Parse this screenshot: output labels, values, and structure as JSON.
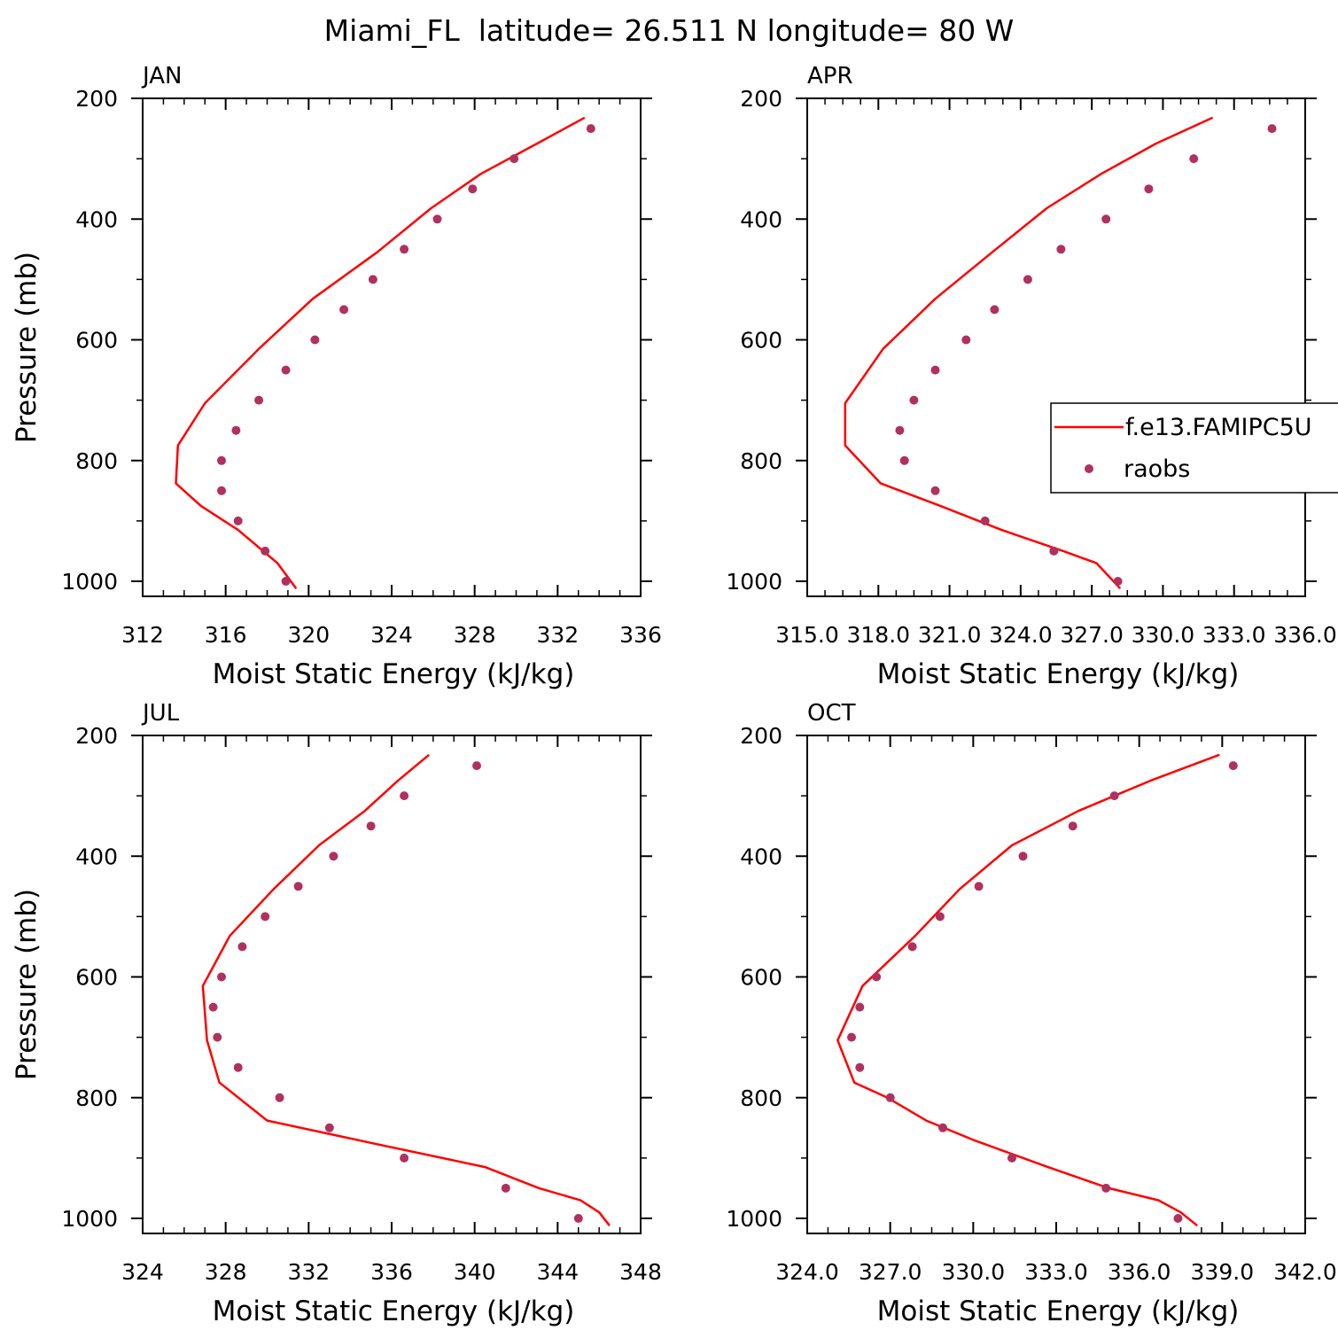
{
  "figure": {
    "title": "Miami_FL  latitude= 26.511 N longitude= 80 W",
    "colors": {
      "model": "#ff0000",
      "obs": "#b03060",
      "axes": "#000000"
    }
  },
  "legend": {
    "entries": [
      {
        "label": "f.e13.FAMIPC5U",
        "kind": "line",
        "color": "#ff0000"
      },
      {
        "label": "raobs",
        "kind": "marker",
        "color": "#b03060"
      }
    ],
    "placement": "right side of APR panel, clipped at figure edge"
  },
  "chart_data": [
    {
      "type": "line",
      "panel": "JAN",
      "title": "JAN",
      "xlabel": "Moist Static Energy (kJ/kg)",
      "ylabel": "Pressure (mb)",
      "xlim": [
        312,
        336
      ],
      "ylim": [
        1000,
        200
      ],
      "y_reversed": true,
      "xticks": [
        "312",
        "316",
        "320",
        "324",
        "328",
        "332",
        "336"
      ],
      "xtick_values": [
        312,
        316,
        320,
        324,
        328,
        332,
        336
      ],
      "yticks": [
        "200",
        "400",
        "600",
        "800",
        "1000"
      ],
      "ytick_values": [
        200,
        400,
        600,
        800,
        1000
      ],
      "series": [
        {
          "name": "f.e13.FAMIPC5U",
          "kind": "line",
          "x": [
            333.3,
            331,
            328.3,
            325.9,
            323.3,
            320.2,
            317.6,
            315,
            313.7,
            313.6,
            314.8,
            316.6,
            318.5,
            319.4
          ],
          "y": [
            232,
            275,
            325,
            382,
            455,
            532,
            615,
            705,
            775,
            838,
            875,
            915,
            970,
            1012
          ]
        },
        {
          "name": "raobs",
          "kind": "marker",
          "x": [
            333.6,
            329.9,
            327.9,
            326.2,
            324.6,
            323.1,
            321.7,
            320.3,
            318.9,
            317.6,
            316.5,
            315.8,
            315.8,
            316.6,
            317.9,
            318.9
          ],
          "y": [
            250,
            300,
            350,
            400,
            450,
            500,
            550,
            600,
            650,
            700,
            750,
            800,
            850,
            900,
            950,
            1000
          ]
        }
      ]
    },
    {
      "type": "line",
      "panel": "APR",
      "title": "APR",
      "xlabel": "Moist Static Energy (kJ/kg)",
      "ylabel": "",
      "xlim": [
        315.0,
        336.0
      ],
      "ylim": [
        1000,
        200
      ],
      "y_reversed": true,
      "xticks": [
        "315.0",
        "318.0",
        "321.0",
        "324.0",
        "327.0",
        "330.0",
        "333.0",
        "336.0"
      ],
      "xtick_values": [
        315,
        318,
        321,
        324,
        327,
        330,
        333,
        336
      ],
      "yticks": [
        "200",
        "400",
        "600",
        "800",
        "1000"
      ],
      "ytick_values": [
        200,
        400,
        600,
        800,
        1000
      ],
      "series": [
        {
          "name": "f.e13.FAMIPC5U",
          "kind": "line",
          "x": [
            332.1,
            329.7,
            327.4,
            325.1,
            322.8,
            320.4,
            318.2,
            316.6,
            316.6,
            318.1,
            320.6,
            323.2,
            325.8,
            327.2,
            328.2
          ],
          "y": [
            232,
            275,
            325,
            382,
            455,
            532,
            615,
            705,
            775,
            838,
            875,
            915,
            950,
            970,
            1012
          ]
        },
        {
          "name": "raobs",
          "kind": "marker",
          "x": [
            334.6,
            331.3,
            329.4,
            327.6,
            325.7,
            324.3,
            322.9,
            321.7,
            320.4,
            319.5,
            318.9,
            319.1,
            320.4,
            322.5,
            325.4,
            328.1
          ],
          "y": [
            250,
            300,
            350,
            400,
            450,
            500,
            550,
            600,
            650,
            700,
            750,
            800,
            850,
            900,
            950,
            1000
          ]
        }
      ]
    },
    {
      "type": "line",
      "panel": "JUL",
      "title": "JUL",
      "xlabel": "Moist Static Energy (kJ/kg)",
      "ylabel": "Pressure (mb)",
      "xlim": [
        324,
        348
      ],
      "ylim": [
        1000,
        200
      ],
      "y_reversed": true,
      "xticks": [
        "324",
        "328",
        "332",
        "336",
        "340",
        "344",
        "348"
      ],
      "xtick_values": [
        324,
        328,
        332,
        336,
        340,
        344,
        348
      ],
      "yticks": [
        "200",
        "400",
        "600",
        "800",
        "1000"
      ],
      "ytick_values": [
        200,
        400,
        600,
        800,
        1000
      ],
      "series": [
        {
          "name": "f.e13.FAMIPC5U",
          "kind": "line",
          "x": [
            337.8,
            336.3,
            334.7,
            332.5,
            330.3,
            328.2,
            326.9,
            327.1,
            327.7,
            330.0,
            335.0,
            340.5,
            343.1,
            345.1,
            346.0,
            346.5
          ],
          "y": [
            232,
            275,
            325,
            382,
            455,
            532,
            615,
            705,
            775,
            838,
            875,
            915,
            950,
            970,
            990,
            1012
          ]
        },
        {
          "name": "raobs",
          "kind": "marker",
          "x": [
            340.1,
            336.6,
            335.0,
            333.2,
            331.5,
            329.9,
            328.8,
            327.8,
            327.4,
            327.6,
            328.6,
            330.6,
            333.0,
            336.6,
            341.5,
            345.0
          ],
          "y": [
            250,
            300,
            350,
            400,
            450,
            500,
            550,
            600,
            650,
            700,
            750,
            800,
            850,
            900,
            950,
            1000
          ]
        }
      ]
    },
    {
      "type": "line",
      "panel": "OCT",
      "title": "OCT",
      "xlabel": "Moist Static Energy (kJ/kg)",
      "ylabel": "",
      "xlim": [
        324.0,
        342.0
      ],
      "ylim": [
        1000,
        200
      ],
      "y_reversed": true,
      "xticks": [
        "324.0",
        "327.0",
        "330.0",
        "333.0",
        "336.0",
        "339.0",
        "342.0"
      ],
      "xtick_values": [
        324,
        327,
        330,
        333,
        336,
        339,
        342
      ],
      "yticks": [
        "200",
        "400",
        "600",
        "800",
        "1000"
      ],
      "ytick_values": [
        200,
        400,
        600,
        800,
        1000
      ],
      "series": [
        {
          "name": "f.e13.FAMIPC5U",
          "kind": "line",
          "x": [
            338.9,
            336.4,
            333.8,
            331.4,
            329.5,
            327.9,
            326.0,
            325.1,
            325.7,
            326.9,
            328.3,
            330.0,
            332.7,
            334.9,
            336.7,
            337.5,
            338.1
          ],
          "y": [
            232,
            275,
            325,
            382,
            455,
            532,
            615,
            705,
            775,
            800,
            838,
            870,
            915,
            950,
            970,
            990,
            1012
          ]
        },
        {
          "name": "raobs",
          "kind": "marker",
          "x": [
            339.4,
            335.1,
            333.6,
            331.8,
            330.2,
            328.8,
            327.8,
            326.5,
            325.9,
            325.6,
            325.9,
            327.0,
            328.9,
            331.4,
            334.8,
            337.4
          ],
          "y": [
            250,
            300,
            350,
            400,
            450,
            500,
            550,
            600,
            650,
            700,
            750,
            800,
            850,
            900,
            950,
            1000
          ]
        }
      ]
    }
  ]
}
